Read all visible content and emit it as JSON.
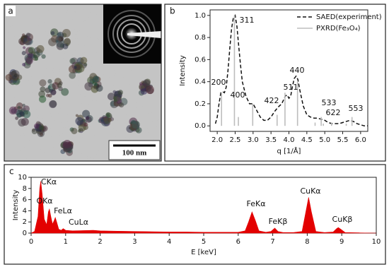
{
  "panel_a": {
    "label": "a",
    "scale_bar": "100 nm"
  },
  "chart_data": [
    {
      "type": "line",
      "panel": "b",
      "xlabel": "q [1/Å]",
      "ylabel": "Intensity",
      "xlim": [
        1.8,
        6.2
      ],
      "ylim": [
        -0.05,
        1.05
      ],
      "xticks": [
        {
          "value": 2,
          "label": "2.0"
        },
        {
          "value": 2.5,
          "label": "2.5"
        },
        {
          "value": 3,
          "label": "3.0"
        },
        {
          "value": 3.5,
          "label": "3.5"
        },
        {
          "value": 4,
          "label": "4.0"
        },
        {
          "value": 4.5,
          "label": "4.5"
        },
        {
          "value": 5,
          "label": "5.0"
        },
        {
          "value": 5.5,
          "label": "5.5"
        },
        {
          "value": 6,
          "label": "6.0"
        }
      ],
      "yticks": [
        {
          "value": 0,
          "label": "0.0"
        },
        {
          "value": 0.2,
          "label": "0.2"
        },
        {
          "value": 0.4,
          "label": "0.4"
        },
        {
          "value": 0.6,
          "label": "0.6"
        },
        {
          "value": 0.8,
          "label": "0.8"
        },
        {
          "value": 1,
          "label": "1.0"
        }
      ],
      "legend": "upper right",
      "series": [
        {
          "name": "SAED(experiment)",
          "color": "#111111",
          "style": "dashed",
          "x": [
            1.95,
            2.0,
            2.05,
            2.1,
            2.15,
            2.2,
            2.25,
            2.3,
            2.35,
            2.4,
            2.45,
            2.5,
            2.55,
            2.6,
            2.65,
            2.7,
            2.8,
            2.9,
            3.0,
            3.1,
            3.2,
            3.3,
            3.4,
            3.5,
            3.6,
            3.7,
            3.8,
            3.9,
            3.95,
            4.0,
            4.05,
            4.1,
            4.15,
            4.2,
            4.25,
            4.3,
            4.4,
            4.5,
            4.6,
            4.7,
            4.8,
            4.9,
            5.0,
            5.1,
            5.2,
            5.3,
            5.4,
            5.5,
            5.6,
            5.7,
            5.8,
            5.9,
            6.0,
            6.1,
            6.2
          ],
          "values": [
            0.02,
            0.08,
            0.2,
            0.3,
            0.31,
            0.3,
            0.35,
            0.5,
            0.7,
            0.88,
            0.98,
            1.0,
            0.9,
            0.72,
            0.55,
            0.4,
            0.27,
            0.2,
            0.2,
            0.14,
            0.08,
            0.05,
            0.05,
            0.08,
            0.13,
            0.17,
            0.2,
            0.27,
            0.28,
            0.25,
            0.27,
            0.36,
            0.43,
            0.45,
            0.42,
            0.33,
            0.18,
            0.1,
            0.08,
            0.07,
            0.07,
            0.06,
            0.05,
            0.03,
            0.02,
            0.02,
            0.02,
            0.03,
            0.04,
            0.05,
            0.04,
            0.02,
            0.01,
            0.0,
            0.0
          ]
        },
        {
          "name": "PXRD(Fe₃O₄)",
          "color": "#bdbdbd",
          "style": "stick",
          "x": [
            2.12,
            2.48,
            2.59,
            2.99,
            3.67,
            3.89,
            4.24,
            4.73,
            4.9,
            4.96,
            5.19,
            5.6,
            5.76
          ],
          "values": [
            0.3,
            1.0,
            0.08,
            0.2,
            0.1,
            0.3,
            0.4,
            0.03,
            0.08,
            0.02,
            0.03,
            0.02,
            0.08
          ]
        }
      ],
      "annotations": [
        "200",
        "311",
        "400",
        "422",
        "511",
        "440",
        "533",
        "622",
        "553"
      ]
    },
    {
      "type": "area",
      "panel": "c",
      "xlabel": "E [keV]",
      "ylabel": "Intensity",
      "xlim": [
        0,
        10
      ],
      "ylim": [
        0,
        10
      ],
      "xticks": [
        0,
        1,
        2,
        3,
        4,
        5,
        6,
        7,
        8,
        9,
        10
      ],
      "yticks": [
        0,
        2,
        4,
        6,
        8,
        10
      ],
      "series": [
        {
          "color": "#e30000",
          "x": [
            0.0,
            0.1,
            0.2,
            0.25,
            0.28,
            0.32,
            0.38,
            0.45,
            0.5,
            0.53,
            0.57,
            0.62,
            0.67,
            0.7,
            0.74,
            0.8,
            0.87,
            0.93,
            1.0,
            1.2,
            1.5,
            1.8,
            2.0,
            2.5,
            3.0,
            3.5,
            4.0,
            4.5,
            5.0,
            5.5,
            6.0,
            6.2,
            6.3,
            6.4,
            6.5,
            6.6,
            6.8,
            6.95,
            7.06,
            7.15,
            7.3,
            7.6,
            7.85,
            7.95,
            8.04,
            8.12,
            8.25,
            8.5,
            8.75,
            8.85,
            8.9,
            8.97,
            9.1,
            9.5,
            10.0
          ],
          "values": [
            0,
            0.3,
            3,
            8,
            9.3,
            7,
            2.5,
            1.5,
            3.8,
            4.3,
            3,
            1.6,
            2.3,
            2.8,
            2,
            0.7,
            0.5,
            0.8,
            0.5,
            0.4,
            0.45,
            0.5,
            0.4,
            0.35,
            0.3,
            0.25,
            0.2,
            0.2,
            0.15,
            0.15,
            0.15,
            0.4,
            2.0,
            3.8,
            2.2,
            0.4,
            0.15,
            0.3,
            0.9,
            0.3,
            0.1,
            0.1,
            0.3,
            3.5,
            6.4,
            3.8,
            0.3,
            0.1,
            0.2,
            0.8,
            1.0,
            0.7,
            0.1,
            0.05,
            0
          ]
        }
      ],
      "annotations": [
        "CKα",
        "OKα",
        "FeLα",
        "CuLα",
        "FeKα",
        "FeKβ",
        "CuKα",
        "CuKβ"
      ]
    }
  ]
}
